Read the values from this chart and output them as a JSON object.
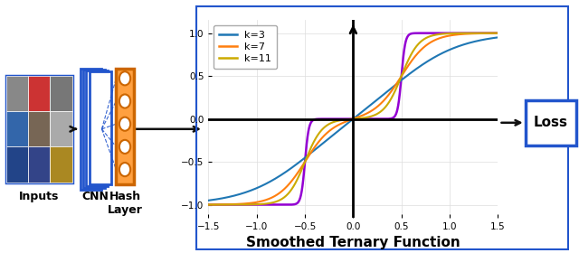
{
  "title": "Smoothed Ternary Function",
  "title_fontsize": 11,
  "legend_labels": [
    "k=3",
    "k=7",
    "k=11"
  ],
  "line_colors": [
    "#1f77b4",
    "#ff7f0e",
    "#ccaa00"
  ],
  "purple_color": "#9400D3",
  "xlim": [
    -1.5,
    1.5
  ],
  "ylim": [
    -1.15,
    1.15
  ],
  "xticks": [
    -1.5,
    -1.0,
    -0.5,
    0.0,
    0.5,
    1.0,
    1.5
  ],
  "yticks": [
    -1.0,
    -0.5,
    0.0,
    0.5,
    1.0
  ],
  "k_values": [
    3,
    7,
    11
  ],
  "threshold": 0.5,
  "border_color": "#2255CC",
  "loss_box_color": "#2255CC",
  "hash_layer_fill": "#FFA040",
  "hash_layer_edge": "#cc6600",
  "cnn_color": "#2255CC",
  "img_border_color": "#2255CC",
  "grid_colors": [
    [
      "#888888",
      "#cc3333",
      "#777777"
    ],
    [
      "#3366aa",
      "#776655",
      "#aaaaaa"
    ],
    [
      "#224488",
      "#334488",
      "#aa8822"
    ]
  ],
  "arrow_color": "#111111",
  "arrow_lw": 1.8
}
